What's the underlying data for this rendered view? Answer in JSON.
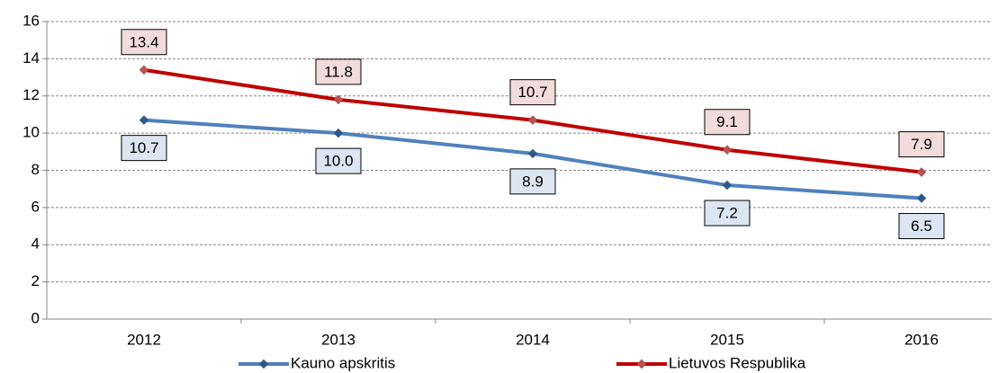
{
  "chart_data": {
    "type": "line",
    "categories": [
      "2012",
      "2013",
      "2014",
      "2015",
      "2016"
    ],
    "series": [
      {
        "name": "Kauno apskritis",
        "color": "#4f81bd",
        "marker_color": "#2c5a8f",
        "label_fill": "#dce6f2",
        "label_position": "below",
        "values": [
          10.7,
          10.0,
          8.9,
          7.2,
          6.5
        ],
        "value_labels": [
          "10.7",
          "10.0",
          "8.9",
          "7.2",
          "6.5"
        ]
      },
      {
        "name": "Lietuvos Respublika",
        "color": "#c00000",
        "marker_color": "#c0504d",
        "label_fill": "#f2dcdb",
        "label_position": "above",
        "values": [
          13.4,
          11.8,
          10.7,
          9.1,
          7.9
        ],
        "value_labels": [
          "13.4",
          "11.8",
          "10.7",
          "9.1",
          "7.9"
        ]
      }
    ],
    "ylim": [
      0,
      16
    ],
    "yticks": [
      0,
      2,
      4,
      6,
      8,
      10,
      12,
      14,
      16
    ],
    "grid": true,
    "legend": "bottom"
  }
}
